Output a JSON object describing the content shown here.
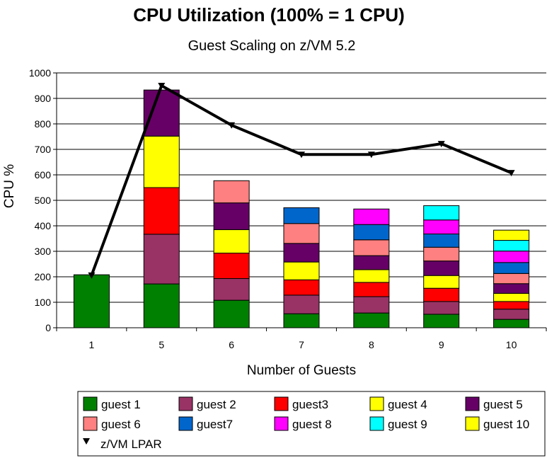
{
  "chart_data": {
    "type": "bar",
    "title": "CPU Utilization (100% = 1 CPU)",
    "subtitle": "Guest Scaling on z/VM 5.2",
    "xlabel": "Number of Guests",
    "ylabel": "CPU %",
    "ylim": [
      0,
      1000
    ],
    "yticks": [
      0,
      100,
      200,
      300,
      400,
      500,
      600,
      700,
      800,
      900,
      1000
    ],
    "grid": "horizontal",
    "legend_position": "bottom",
    "stacked": true,
    "categories": [
      "1",
      "5",
      "6",
      "7",
      "8",
      "9",
      "10"
    ],
    "series": [
      {
        "name": "guest 1",
        "color": "#008000",
        "values": [
          208,
          172,
          108,
          55,
          58,
          53,
          33
        ]
      },
      {
        "name": "guest 2",
        "color": "#993366",
        "values": [
          0,
          195,
          85,
          73,
          64,
          50,
          40
        ]
      },
      {
        "name": "guest3",
        "color": "#ff0000",
        "values": [
          0,
          183,
          100,
          60,
          56,
          52,
          30
        ]
      },
      {
        "name": "guest 4",
        "color": "#ffff00",
        "values": [
          0,
          202,
          92,
          70,
          50,
          50,
          32
        ]
      },
      {
        "name": "guest 5",
        "color": "#660066",
        "values": [
          0,
          181,
          105,
          73,
          55,
          57,
          38
        ]
      },
      {
        "name": "guest 6",
        "color": "#ff8080",
        "values": [
          0,
          0,
          87,
          78,
          62,
          54,
          40
        ]
      },
      {
        "name": "guest7",
        "color": "#0066cc",
        "values": [
          0,
          0,
          0,
          62,
          60,
          52,
          43
        ]
      },
      {
        "name": "guest 8",
        "color": "#ff00ff",
        "values": [
          0,
          0,
          0,
          0,
          61,
          55,
          45
        ]
      },
      {
        "name": "guest 9",
        "color": "#00ffff",
        "values": [
          0,
          0,
          0,
          0,
          0,
          56,
          42
        ]
      },
      {
        "name": "guest 10",
        "color": "#ffff00",
        "values": [
          0,
          0,
          0,
          0,
          0,
          0,
          40
        ]
      }
    ],
    "line_series": {
      "name": "z/VM LPAR",
      "color": "#000000",
      "marker": "down-triangle",
      "values": [
        206,
        950,
        795,
        680,
        680,
        722,
        608
      ]
    }
  }
}
